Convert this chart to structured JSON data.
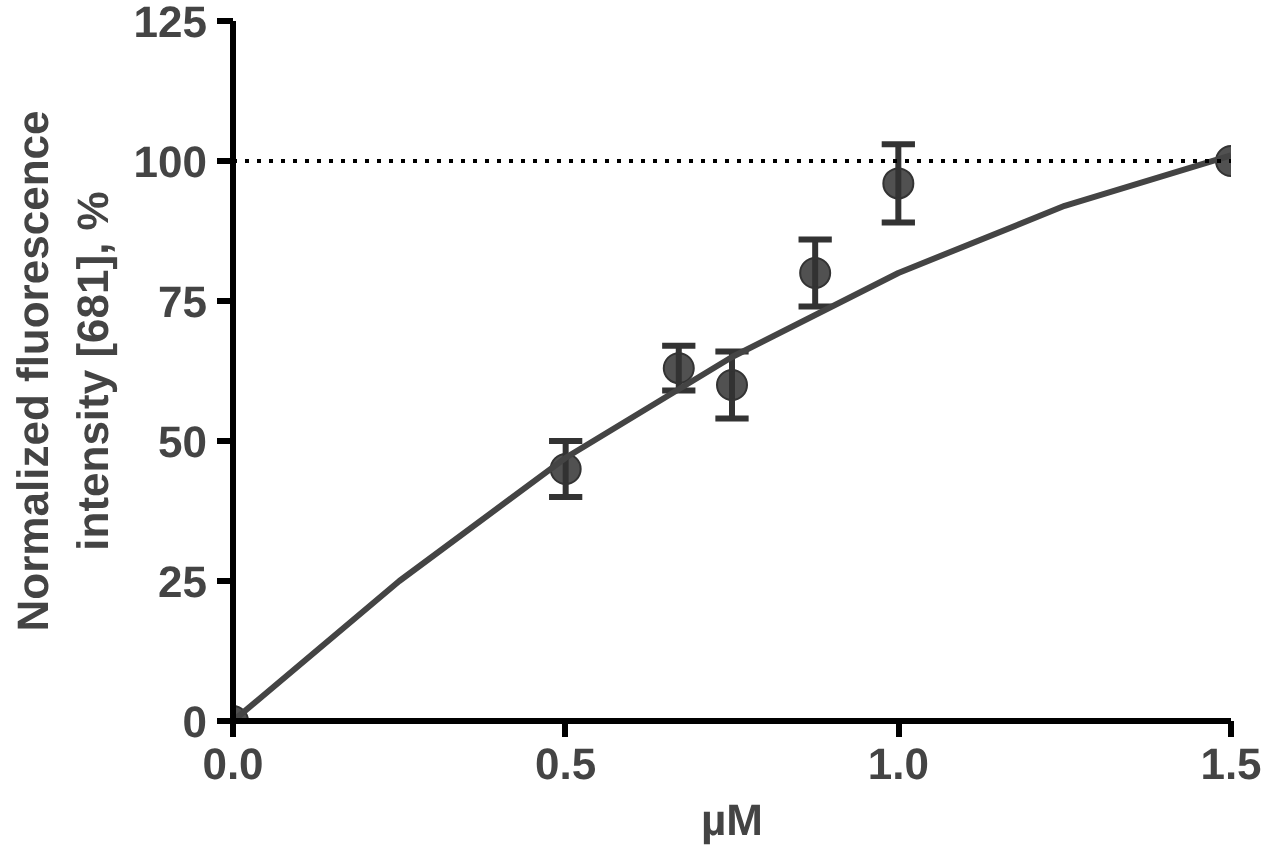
{
  "chart_data": {
    "type": "scatter",
    "xlabel": "µM",
    "ylabel": "Normalized fluorescence\nintensity [681], %",
    "series": [
      {
        "color": "#333333",
        "marker": "circle",
        "x": [
          0,
          0.5,
          0.67,
          0.75,
          0.875,
          1.0,
          1.5
        ],
        "values": [
          0,
          45,
          63,
          60,
          80,
          96,
          100
        ],
        "errors": [
          null,
          5,
          4,
          6,
          6,
          7,
          null
        ]
      },
      {
        "type": "line",
        "color": "#444444",
        "x": [
          0,
          0.25,
          0.5,
          0.75,
          1.0,
          1.25,
          1.5
        ],
        "values": [
          0,
          25,
          47,
          65,
          80,
          92,
          101
        ]
      }
    ],
    "xlim": [
      0,
      1.5
    ],
    "xticks": [
      {
        "value": 0,
        "label": "0.0"
      },
      0.5,
      {
        "value": 1,
        "label": "1.0"
      },
      1.5
    ],
    "ylim": [
      0,
      125
    ],
    "yticks": [
      0,
      25,
      50,
      75,
      100,
      125
    ],
    "ref_lines": [
      {
        "axis": "y",
        "value": 100,
        "line_style": "dotted",
        "color": "#000000"
      }
    ],
    "grid": false
  }
}
